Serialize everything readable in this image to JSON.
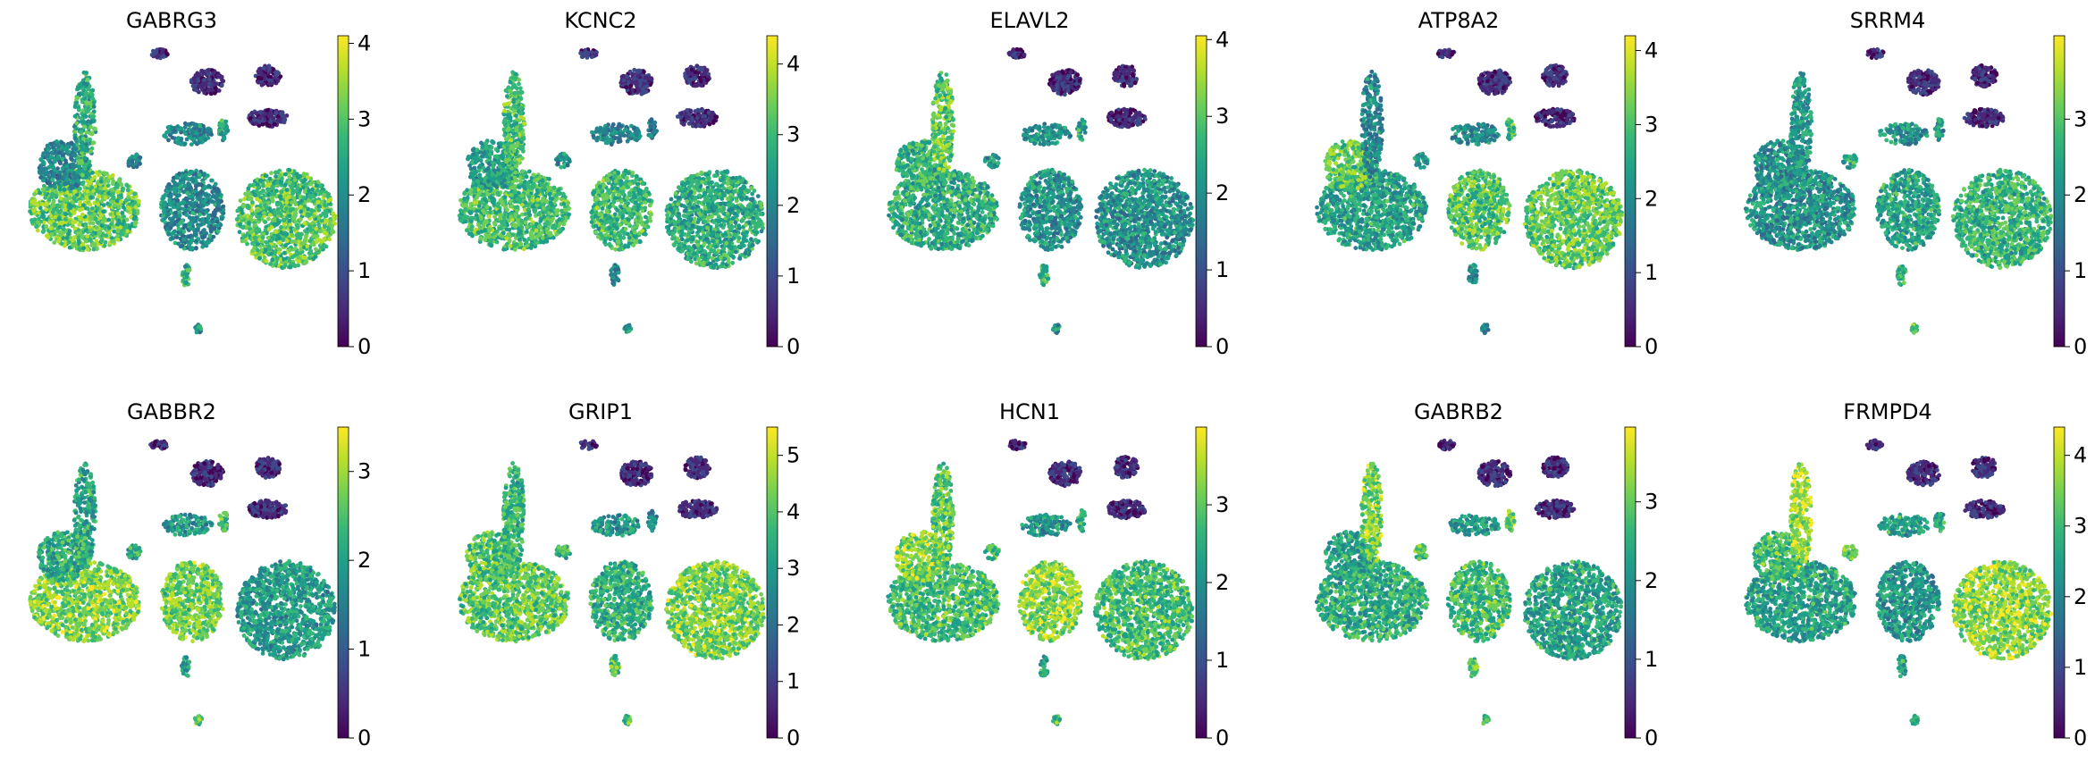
{
  "chart_data": {
    "type": "scatter",
    "description_kind": "UMAP embedding colored by gene expression (viridis)",
    "colormap": [
      "#440154",
      "#482878",
      "#3e4989",
      "#31688e",
      "#26828e",
      "#1f9e89",
      "#35b779",
      "#6ece58",
      "#b5de2b",
      "#fde725"
    ],
    "panels": [
      {
        "title": "GABRG3",
        "vmax": 4.1,
        "ticks": [
          0,
          1,
          2,
          3,
          4
        ]
      },
      {
        "title": "KCNC2",
        "vmax": 4.4,
        "ticks": [
          0,
          1,
          2,
          3,
          4
        ]
      },
      {
        "title": "ELAVL2",
        "vmax": 4.05,
        "ticks": [
          0,
          1,
          2,
          3,
          4
        ]
      },
      {
        "title": "ATP8A2",
        "vmax": 4.2,
        "ticks": [
          0,
          1,
          2,
          3,
          4
        ]
      },
      {
        "title": "SRRM4",
        "vmax": 4.1,
        "ticks": [
          0,
          1,
          2,
          3
        ]
      },
      {
        "title": "GABBR2",
        "vmax": 3.5,
        "ticks": [
          0,
          1,
          2,
          3
        ]
      },
      {
        "title": "GRIP1",
        "vmax": 5.5,
        "ticks": [
          0,
          1,
          2,
          3,
          4,
          5
        ]
      },
      {
        "title": "HCN1",
        "vmax": 4.0,
        "ticks": [
          0,
          1,
          2,
          3
        ]
      },
      {
        "title": "GABRB2",
        "vmax": 3.95,
        "ticks": [
          0,
          1,
          2,
          3
        ]
      },
      {
        "title": "FRMPD4",
        "vmax": 4.4,
        "ticks": [
          0,
          1,
          2,
          3,
          4
        ]
      }
    ]
  }
}
